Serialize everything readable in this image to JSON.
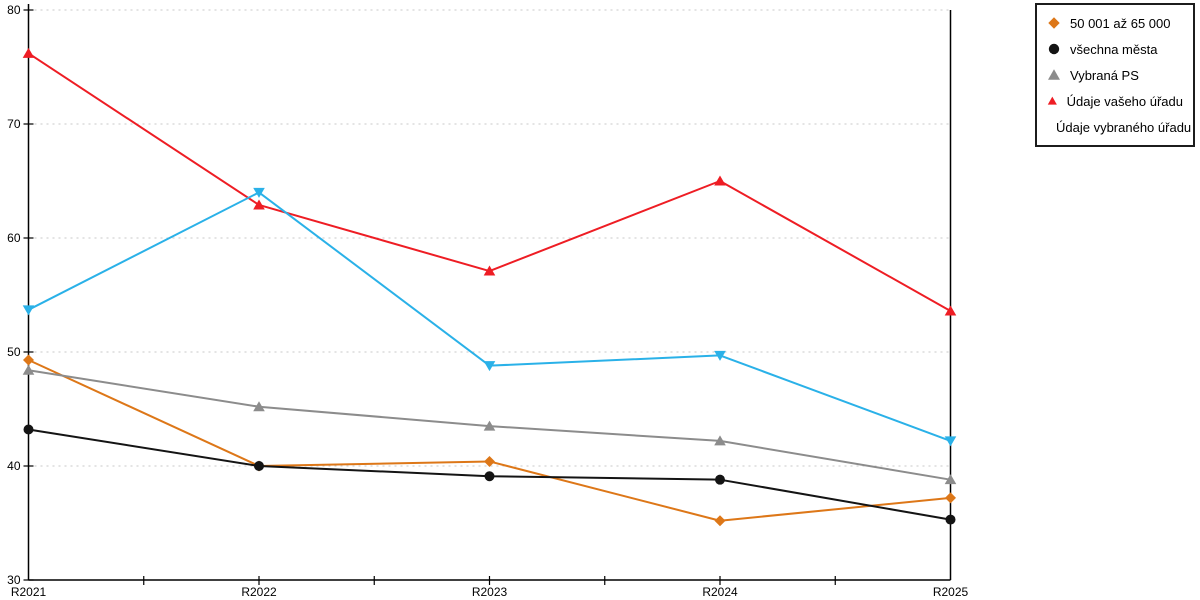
{
  "chart_data": {
    "type": "line",
    "title": "",
    "xlabel": "",
    "ylabel": "",
    "categories": [
      "R2021",
      "R2022",
      "R2023",
      "R2024",
      "R2025"
    ],
    "series": [
      {
        "name": "50 001 až 65 000",
        "marker": "diamond-icon",
        "color": "#DD7718",
        "values": [
          49.3,
          40.0,
          40.4,
          35.2,
          37.2
        ]
      },
      {
        "name": "všechna města",
        "marker": "circle-icon",
        "color": "#141414",
        "values": [
          43.2,
          40.0,
          39.1,
          38.8,
          35.3
        ]
      },
      {
        "name": "Vybraná PS",
        "marker": "triangle-up-icon",
        "color": "#8C8C8C",
        "values": [
          48.4,
          45.2,
          43.5,
          42.2,
          38.8
        ]
      },
      {
        "name": "Údaje vašeho úřadu",
        "marker": "triangle-up-icon",
        "color": "#EE1D24",
        "values": [
          76.2,
          62.9,
          57.1,
          65.0,
          53.6
        ]
      },
      {
        "name": "Údaje vybraného úřadu",
        "marker": "triangle-down-icon",
        "color": "#2AB1E8",
        "values": [
          53.7,
          64.0,
          48.8,
          49.7,
          42.2
        ]
      }
    ],
    "ylim": [
      30,
      80
    ],
    "y_tick_step": 10,
    "y_tick_labels": [
      "30",
      "40",
      "50",
      "60",
      "70",
      "80"
    ],
    "x_tick_labels": [
      "R2021",
      "R2022",
      "R2023",
      "R2024",
      "R2025"
    ],
    "grid": "horizontal-dotted",
    "grid_color": "#C8C8C8",
    "axis_color": "#000000",
    "legend_position": "top-right"
  }
}
